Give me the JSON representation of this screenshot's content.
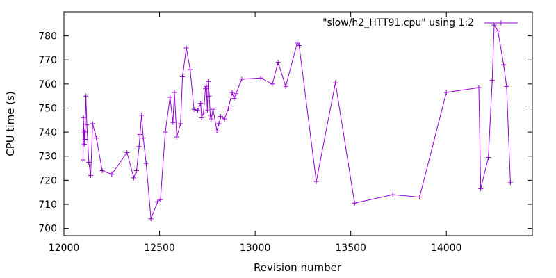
{
  "chart_data": {
    "type": "line",
    "xlabel": "Revision number",
    "ylabel": "CPU time (s)",
    "xlim": [
      12000,
      14450
    ],
    "ylim": [
      697,
      790
    ],
    "x_ticks": [
      12000,
      12500,
      13000,
      13500,
      14000
    ],
    "y_ticks": [
      700,
      710,
      720,
      730,
      740,
      750,
      760,
      770,
      780
    ],
    "grid": false,
    "legend_position": "top-right",
    "series": [
      {
        "name": "\"slow/h2_HTT91.cpu\" using 1:2",
        "color": "#9400d3",
        "marker": "plus",
        "points": [
          [
            12100,
            728.5
          ],
          [
            12102,
            746
          ],
          [
            12104,
            740.5
          ],
          [
            12106,
            735
          ],
          [
            12108,
            740
          ],
          [
            12110,
            737
          ],
          [
            12115,
            755
          ],
          [
            12120,
            743
          ],
          [
            12130,
            727.5
          ],
          [
            12140,
            722
          ],
          [
            12150,
            743.5
          ],
          [
            12170,
            737.5
          ],
          [
            12200,
            724
          ],
          [
            12250,
            722.5
          ],
          [
            12330,
            731.5
          ],
          [
            12365,
            721
          ],
          [
            12380,
            724
          ],
          [
            12393,
            734
          ],
          [
            12398,
            739
          ],
          [
            12406,
            747
          ],
          [
            12415,
            737.5
          ],
          [
            12430,
            727
          ],
          [
            12455,
            704
          ],
          [
            12490,
            711
          ],
          [
            12505,
            712
          ],
          [
            12530,
            740
          ],
          [
            12555,
            754.5
          ],
          [
            12570,
            744
          ],
          [
            12578,
            756.5
          ],
          [
            12590,
            738
          ],
          [
            12610,
            743.5
          ],
          [
            12620,
            763
          ],
          [
            12640,
            775
          ],
          [
            12660,
            766
          ],
          [
            12680,
            749.5
          ],
          [
            12700,
            749
          ],
          [
            12715,
            752
          ],
          [
            12720,
            746
          ],
          [
            12730,
            748
          ],
          [
            12740,
            758
          ],
          [
            12745,
            759
          ],
          [
            12750,
            749
          ],
          [
            12755,
            761
          ],
          [
            12760,
            755
          ],
          [
            12765,
            747
          ],
          [
            12770,
            745.5
          ],
          [
            12780,
            749.5
          ],
          [
            12800,
            740.5
          ],
          [
            12810,
            743.5
          ],
          [
            12820,
            746.5
          ],
          [
            12840,
            745.5
          ],
          [
            12860,
            750
          ],
          [
            12880,
            756.5
          ],
          [
            12890,
            754
          ],
          [
            12900,
            756
          ],
          [
            12930,
            762
          ],
          [
            13030,
            762.5
          ],
          [
            13090,
            760
          ],
          [
            13120,
            769
          ],
          [
            13160,
            759
          ],
          [
            13220,
            777
          ],
          [
            13230,
            776
          ],
          [
            13320,
            719.5
          ],
          [
            13420,
            760.5
          ],
          [
            13520,
            710.5
          ],
          [
            13720,
            714
          ],
          [
            13860,
            713
          ],
          [
            14000,
            756.5
          ],
          [
            14170,
            758.5
          ],
          [
            14180,
            716.5
          ],
          [
            14220,
            729.5
          ],
          [
            14240,
            761.5
          ],
          [
            14250,
            784.5
          ],
          [
            14270,
            782
          ],
          [
            14300,
            768
          ],
          [
            14315,
            759
          ],
          [
            14335,
            719
          ]
        ]
      }
    ]
  }
}
